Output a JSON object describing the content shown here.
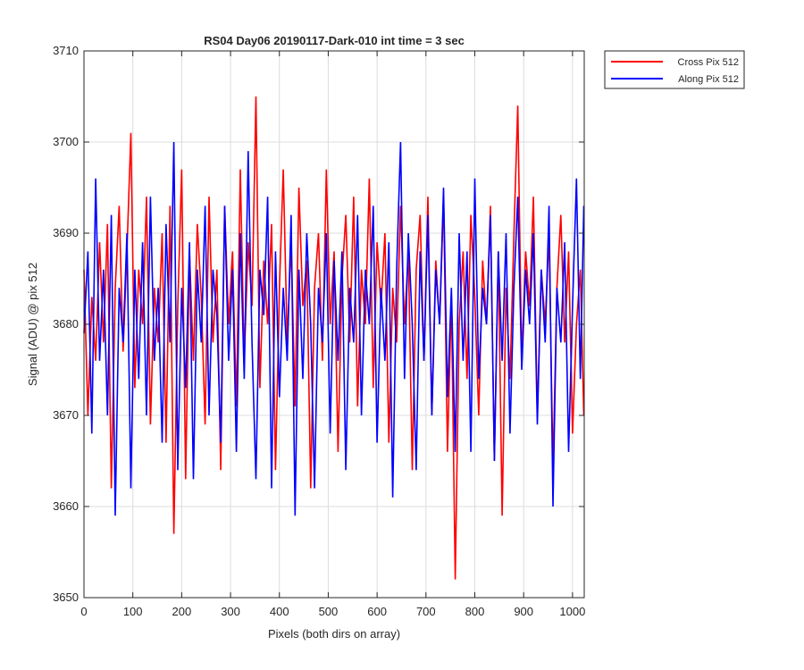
{
  "colors": {
    "cross": "#ff0000",
    "along": "#0000ff",
    "axes": "#262626",
    "grid": "#dcdcdc"
  },
  "chart_data": {
    "type": "line",
    "title": "RS04 Day06 20190117-Dark-010 int time = 3 sec",
    "xlabel": "Pixels (both dirs on array)",
    "ylabel": "Signal (ADU) @ pix 512",
    "xlim": [
      0,
      1024
    ],
    "ylim": [
      3650,
      3710
    ],
    "xticks": [
      0,
      100,
      200,
      300,
      400,
      500,
      600,
      700,
      800,
      900,
      1000
    ],
    "yticks": [
      3650,
      3660,
      3670,
      3680,
      3690,
      3700,
      3710
    ],
    "xtick_labels": [
      "0",
      "100",
      "200",
      "300",
      "400",
      "500",
      "600",
      "700",
      "800",
      "900",
      "1000"
    ],
    "ytick_labels": [
      "3650",
      "3660",
      "3670",
      "3680",
      "3690",
      "3700",
      "3710"
    ],
    "grid": true,
    "legend_position": "outside-top-right",
    "series": [
      {
        "name": "Cross Pix 512",
        "color": "#ff0000",
        "x": [
          0,
          8,
          16,
          24,
          32,
          40,
          48,
          56,
          64,
          72,
          80,
          88,
          96,
          104,
          112,
          120,
          128,
          136,
          144,
          152,
          160,
          168,
          176,
          184,
          192,
          200,
          208,
          216,
          224,
          232,
          240,
          248,
          256,
          264,
          272,
          280,
          288,
          296,
          304,
          312,
          320,
          328,
          336,
          344,
          352,
          360,
          368,
          376,
          384,
          392,
          400,
          408,
          416,
          424,
          432,
          440,
          448,
          456,
          464,
          472,
          480,
          488,
          496,
          504,
          512,
          520,
          528,
          536,
          544,
          552,
          560,
          568,
          576,
          584,
          592,
          600,
          608,
          616,
          624,
          632,
          640,
          648,
          656,
          664,
          672,
          680,
          688,
          696,
          704,
          712,
          720,
          728,
          736,
          744,
          752,
          760,
          768,
          776,
          784,
          792,
          800,
          808,
          816,
          824,
          832,
          840,
          848,
          856,
          864,
          872,
          880,
          888,
          896,
          904,
          912,
          920,
          928,
          936,
          944,
          952,
          960,
          968,
          976,
          984,
          992,
          1000,
          1008,
          1016,
          1023
        ],
        "y": [
          3686,
          3670,
          3683,
          3676,
          3689,
          3678,
          3691,
          3662,
          3684,
          3693,
          3677,
          3688,
          3701,
          3673,
          3686,
          3680,
          3694,
          3669,
          3684,
          3678,
          3690,
          3667,
          3693,
          3657,
          3682,
          3697,
          3663,
          3688,
          3676,
          3691,
          3683,
          3669,
          3694,
          3678,
          3686,
          3664,
          3693,
          3680,
          3688,
          3671,
          3697,
          3676,
          3689,
          3682,
          3705,
          3673,
          3687,
          3680,
          3691,
          3664,
          3684,
          3697,
          3678,
          3689,
          3671,
          3695,
          3682,
          3687,
          3662,
          3684,
          3690,
          3676,
          3697,
          3680,
          3688,
          3666,
          3685,
          3692,
          3678,
          3694,
          3671,
          3686,
          3680,
          3696,
          3673,
          3689,
          3682,
          3690,
          3667,
          3684,
          3678,
          3693,
          3680,
          3688,
          3664,
          3686,
          3692,
          3676,
          3694,
          3670,
          3687,
          3680,
          3694,
          3666,
          3683,
          3652,
          3680,
          3688,
          3674,
          3692,
          3683,
          3670,
          3687,
          3680,
          3693,
          3665,
          3688,
          3659,
          3684,
          3674,
          3690,
          3704,
          3676,
          3688,
          3682,
          3694,
          3670,
          3686,
          3680,
          3690,
          3664,
          3684,
          3692,
          3678,
          3688,
          3668,
          3680,
          3686,
          3670
        ]
      },
      {
        "name": "Along Pix 512",
        "color": "#0000ff",
        "x": [
          0,
          8,
          16,
          24,
          32,
          40,
          48,
          56,
          64,
          72,
          80,
          88,
          96,
          104,
          112,
          120,
          128,
          136,
          144,
          152,
          160,
          168,
          176,
          184,
          192,
          200,
          208,
          216,
          224,
          232,
          240,
          248,
          256,
          264,
          272,
          280,
          288,
          296,
          304,
          312,
          320,
          328,
          336,
          344,
          352,
          360,
          368,
          376,
          384,
          392,
          400,
          408,
          416,
          424,
          432,
          440,
          448,
          456,
          464,
          472,
          480,
          488,
          496,
          504,
          512,
          520,
          528,
          536,
          544,
          552,
          560,
          568,
          576,
          584,
          592,
          600,
          608,
          616,
          624,
          632,
          640,
          648,
          656,
          664,
          672,
          680,
          688,
          696,
          704,
          712,
          720,
          728,
          736,
          744,
          752,
          760,
          768,
          776,
          784,
          792,
          800,
          808,
          816,
          824,
          832,
          840,
          848,
          856,
          864,
          872,
          880,
          888,
          896,
          904,
          912,
          920,
          928,
          936,
          944,
          952,
          960,
          968,
          976,
          984,
          992,
          1000,
          1008,
          1016,
          1023
        ],
        "y": [
          3679,
          3688,
          3668,
          3696,
          3676,
          3686,
          3670,
          3692,
          3659,
          3684,
          3678,
          3690,
          3662,
          3686,
          3674,
          3689,
          3670,
          3694,
          3676,
          3684,
          3667,
          3691,
          3678,
          3700,
          3664,
          3684,
          3673,
          3689,
          3663,
          3686,
          3678,
          3693,
          3670,
          3686,
          3681,
          3667,
          3693,
          3676,
          3686,
          3666,
          3690,
          3674,
          3699,
          3678,
          3663,
          3686,
          3681,
          3694,
          3662,
          3688,
          3672,
          3684,
          3676,
          3692,
          3659,
          3686,
          3674,
          3690,
          3680,
          3662,
          3684,
          3678,
          3690,
          3668,
          3687,
          3676,
          3688,
          3664,
          3684,
          3678,
          3692,
          3670,
          3686,
          3680,
          3693,
          3667,
          3684,
          3676,
          3689,
          3661,
          3686,
          3700,
          3674,
          3690,
          3680,
          3664,
          3688,
          3676,
          3692,
          3670,
          3686,
          3680,
          3695,
          3672,
          3684,
          3666,
          3690,
          3676,
          3688,
          3666,
          3696,
          3674,
          3684,
          3680,
          3692,
          3665,
          3688,
          3676,
          3690,
          3668,
          3684,
          3694,
          3675,
          3686,
          3680,
          3690,
          3669,
          3686,
          3678,
          3693,
          3660,
          3684,
          3678,
          3689,
          3666,
          3682,
          3696,
          3674,
          3693
        ]
      }
    ]
  }
}
